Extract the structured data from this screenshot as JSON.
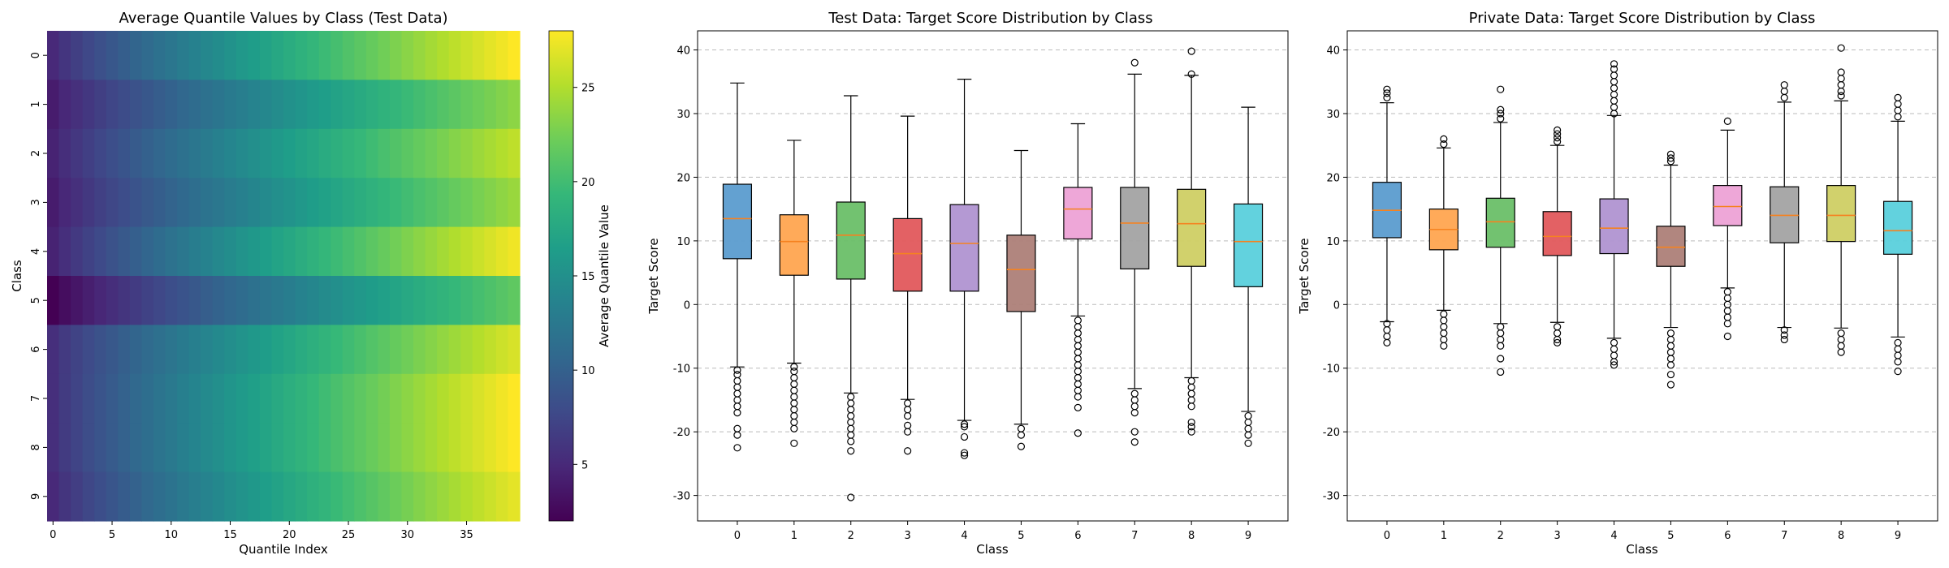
{
  "chart_data": [
    {
      "type": "heatmap",
      "title": "Average Quantile Values by Class (Test Data)",
      "xlabel": "Quantile Index",
      "ylabel": "Class",
      "colorbar_label": "Average Quantile Value",
      "colormap": "viridis",
      "color_range": [
        2,
        28
      ],
      "colorbar_ticks": [
        5,
        10,
        15,
        20,
        25
      ],
      "x_ticks": [
        0,
        5,
        10,
        15,
        20,
        25,
        30,
        35
      ],
      "x_tick_labels": [
        "0",
        "5",
        "10",
        "15",
        "20",
        "25",
        "30",
        "35"
      ],
      "n_quantiles": 40,
      "rows": [
        "0",
        "1",
        "2",
        "3",
        "4",
        "5",
        "6",
        "7",
        "8",
        "9"
      ],
      "row_profiles": [
        {
          "start": 5.0,
          "end": 28.0
        },
        {
          "start": 4.0,
          "end": 23.5
        },
        {
          "start": 4.5,
          "end": 25.5
        },
        {
          "start": 4.0,
          "end": 24.0
        },
        {
          "start": 4.5,
          "end": 27.5
        },
        {
          "start": 2.0,
          "end": 21.5
        },
        {
          "start": 5.5,
          "end": 26.5
        },
        {
          "start": 5.5,
          "end": 28.0
        },
        {
          "start": 5.5,
          "end": 28.0
        },
        {
          "start": 5.0,
          "end": 27.0
        }
      ]
    },
    {
      "type": "box",
      "title": "Test Data: Target Score Distribution by Class",
      "xlabel": "Class",
      "ylabel": "Target Score",
      "ylim": [
        -34,
        43
      ],
      "y_ticks": [
        -30,
        -20,
        -10,
        0,
        10,
        20,
        30,
        40
      ],
      "grid": "y-dashed",
      "categories": [
        "0",
        "1",
        "2",
        "3",
        "4",
        "5",
        "6",
        "7",
        "8",
        "9"
      ],
      "colors": [
        "#5b9ccf",
        "#ffa550",
        "#6abf68",
        "#e2595c",
        "#b093d1",
        "#ad8078",
        "#eda2d6",
        "#a3a3a3",
        "#cfcf64",
        "#5ad0dc"
      ],
      "median_color": "#f58220",
      "boxes": [
        {
          "whislo": -9.8,
          "q1": 7.2,
          "med": 13.5,
          "q3": 18.9,
          "whishi": 34.8,
          "outliers": [
            -10.3,
            -11.0,
            -12.0,
            -13.0,
            -14.0,
            -15.0,
            -16.0,
            -17.0,
            -19.5,
            -20.5,
            -22.5
          ]
        },
        {
          "whislo": -9.2,
          "q1": 4.6,
          "med": 9.9,
          "q3": 14.1,
          "whishi": 25.8,
          "outliers": [
            -9.8,
            -10.5,
            -11.5,
            -12.5,
            -13.5,
            -14.5,
            -15.5,
            -16.5,
            -17.5,
            -18.5,
            -19.5,
            -21.8
          ]
        },
        {
          "whislo": -13.9,
          "q1": 4.0,
          "med": 10.9,
          "q3": 16.1,
          "whishi": 32.8,
          "outliers": [
            -14.5,
            -15.5,
            -16.5,
            -17.5,
            -18.5,
            -19.5,
            -20.5,
            -21.5,
            -23.0,
            -30.3
          ]
        },
        {
          "whislo": -14.9,
          "q1": 2.1,
          "med": 8.0,
          "q3": 13.5,
          "whishi": 29.6,
          "outliers": [
            -15.5,
            -16.5,
            -17.5,
            -19.0,
            -20.0,
            -23.0
          ]
        },
        {
          "whislo": -18.2,
          "q1": 2.1,
          "med": 9.6,
          "q3": 15.7,
          "whishi": 35.4,
          "outliers": [
            -18.8,
            -19.2,
            -20.8,
            -23.3,
            -23.7
          ]
        },
        {
          "whislo": -18.8,
          "q1": -1.1,
          "med": 5.5,
          "q3": 10.9,
          "whishi": 24.2,
          "outliers": [
            -19.5,
            -20.5,
            -22.3
          ]
        },
        {
          "whislo": -1.8,
          "q1": 10.3,
          "med": 15.0,
          "q3": 18.4,
          "whishi": 28.4,
          "outliers": [
            -2.5,
            -3.5,
            -4.5,
            -5.5,
            -6.5,
            -7.5,
            -8.5,
            -9.5,
            -10.5,
            -11.5,
            -12.5,
            -13.5,
            -14.5,
            -16.2,
            -20.2
          ]
        },
        {
          "whislo": -13.2,
          "q1": 5.6,
          "med": 12.8,
          "q3": 18.4,
          "whishi": 36.2,
          "outliers": [
            -14.0,
            -15.0,
            -16.0,
            -17.0,
            -20.0,
            -21.6,
            38.0
          ]
        },
        {
          "whislo": -11.5,
          "q1": 6.0,
          "med": 12.7,
          "q3": 18.1,
          "whishi": 36.0,
          "outliers": [
            -12.0,
            -13.0,
            -14.0,
            -15.0,
            -16.0,
            -18.5,
            -19.2,
            -20.0,
            36.2,
            39.8
          ]
        },
        {
          "whislo": -16.8,
          "q1": 2.8,
          "med": 9.9,
          "q3": 15.8,
          "whishi": 31.0,
          "outliers": [
            -17.5,
            -18.5,
            -19.5,
            -20.5,
            -21.8
          ]
        }
      ]
    },
    {
      "type": "box",
      "title": "Private Data: Target Score Distribution by Class",
      "xlabel": "Class",
      "ylabel": "Target Score",
      "ylim": [
        -34,
        43
      ],
      "y_ticks": [
        -30,
        -20,
        -10,
        0,
        10,
        20,
        30,
        40
      ],
      "grid": "y-dashed",
      "categories": [
        "0",
        "1",
        "2",
        "3",
        "4",
        "5",
        "6",
        "7",
        "8",
        "9"
      ],
      "colors": [
        "#5b9ccf",
        "#ffa550",
        "#6abf68",
        "#e2595c",
        "#b093d1",
        "#ad8078",
        "#eda2d6",
        "#a3a3a3",
        "#cfcf64",
        "#5ad0dc"
      ],
      "median_color": "#f58220",
      "boxes": [
        {
          "whislo": -2.7,
          "q1": 10.5,
          "med": 14.8,
          "q3": 19.2,
          "whishi": 31.7,
          "outliers": [
            -3.0,
            -4.0,
            -5.0,
            -6.0,
            32.5,
            33.2,
            33.8
          ]
        },
        {
          "whislo": -0.9,
          "q1": 8.6,
          "med": 11.8,
          "q3": 15.0,
          "whishi": 24.6,
          "outliers": [
            -1.5,
            -2.5,
            -3.5,
            -4.5,
            -5.5,
            -6.5,
            25.2,
            26.0
          ]
        },
        {
          "whislo": -3.0,
          "q1": 9.0,
          "med": 13.0,
          "q3": 16.7,
          "whishi": 28.6,
          "outliers": [
            -3.5,
            -4.5,
            -5.5,
            -6.5,
            -8.5,
            -10.6,
            29.2,
            30.0,
            30.6,
            33.8
          ]
        },
        {
          "whislo": -2.8,
          "q1": 7.7,
          "med": 10.7,
          "q3": 14.6,
          "whishi": 25.0,
          "outliers": [
            -3.5,
            -4.5,
            -5.5,
            -6.0,
            25.6,
            26.2,
            26.8,
            27.4
          ]
        },
        {
          "whislo": -5.3,
          "q1": 8.0,
          "med": 12.0,
          "q3": 16.6,
          "whishi": 29.7,
          "outliers": [
            -6.0,
            -7.0,
            -8.0,
            -9.0,
            -9.5,
            30.0,
            31.0,
            32.0,
            33.0,
            34.0,
            35.0,
            36.0,
            37.0,
            37.8
          ]
        },
        {
          "whislo": -3.6,
          "q1": 6.0,
          "med": 9.0,
          "q3": 12.3,
          "whishi": 21.9,
          "outliers": [
            -4.5,
            -5.5,
            -6.5,
            -7.5,
            -8.5,
            -9.5,
            -11.0,
            -12.6,
            22.5,
            23.0,
            23.6
          ]
        },
        {
          "whislo": 2.6,
          "q1": 12.4,
          "med": 15.4,
          "q3": 18.7,
          "whishi": 27.4,
          "outliers": [
            2.0,
            1.0,
            0.0,
            -1.0,
            -2.0,
            -3.0,
            -5.0,
            28.8
          ]
        },
        {
          "whislo": -3.6,
          "q1": 9.7,
          "med": 14.0,
          "q3": 18.5,
          "whishi": 31.8,
          "outliers": [
            -4.0,
            -4.8,
            -5.5,
            32.5,
            33.5,
            34.5
          ]
        },
        {
          "whislo": -3.7,
          "q1": 9.9,
          "med": 14.0,
          "q3": 18.7,
          "whishi": 32.0,
          "outliers": [
            -4.5,
            -5.5,
            -6.5,
            -7.5,
            32.8,
            33.5,
            34.5,
            35.5,
            36.5,
            40.3
          ]
        },
        {
          "whislo": -5.1,
          "q1": 7.9,
          "med": 11.6,
          "q3": 16.2,
          "whishi": 28.8,
          "outliers": [
            -6.0,
            -7.0,
            -8.0,
            -9.0,
            -10.5,
            29.5,
            30.5,
            31.5,
            32.5
          ]
        }
      ]
    }
  ]
}
